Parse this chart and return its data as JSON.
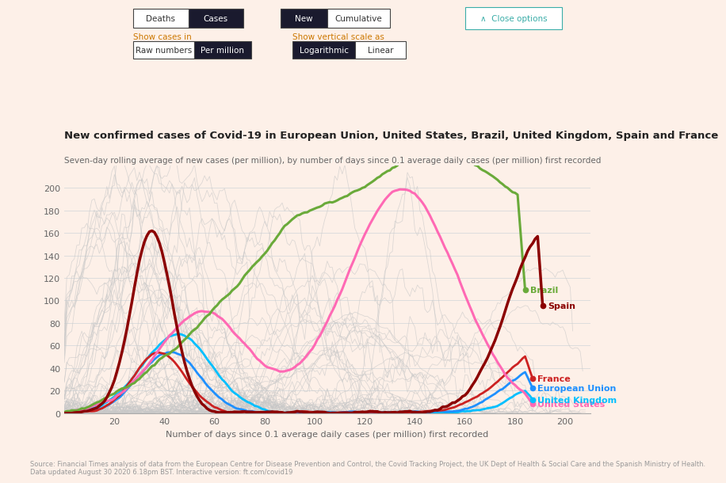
{
  "title": "New confirmed cases of Covid-19 in European Union, United States, Brazil, United Kingdom, Spain and France",
  "subtitle": "Seven-day rolling average of new cases (per million), by number of days since 0.1 average daily cases (per million) first recorded",
  "xlabel": "Number of days since 0.1 average daily cases (per million) first recorded",
  "source": "Source: Financial Times analysis of data from the European Centre for Disease Prevention and Control, the Covid Tracking Project, the UK Dept of Health & Social Care and the Spanish Ministry of Health.\nData updated August 30 2020 6.18pm BST. Interactive version: ft.com/covid19",
  "background_color": "#fdf0e8",
  "ylim": [
    0,
    220
  ],
  "xlim": [
    0,
    210
  ],
  "yticks": [
    0,
    20,
    40,
    60,
    80,
    100,
    120,
    140,
    160,
    180,
    200
  ],
  "xticks": [
    20,
    40,
    60,
    80,
    100,
    120,
    140,
    160,
    180,
    200
  ],
  "countries": {
    "Spain": {
      "color": "#8b0000"
    },
    "United States": {
      "color": "#ff69b4"
    },
    "Brazil": {
      "color": "#6aaa3a"
    },
    "France": {
      "color": "#cc2222"
    },
    "European Union": {
      "color": "#1e90ff"
    },
    "United Kingdom": {
      "color": "#00bfff"
    }
  }
}
